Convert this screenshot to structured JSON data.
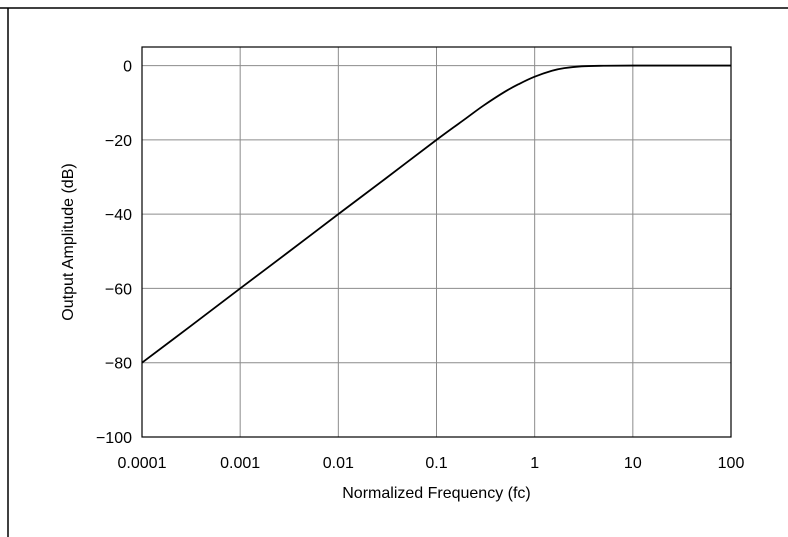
{
  "chart_data": {
    "type": "line",
    "title": "",
    "xlabel": "Normalized Frequency (fc)",
    "ylabel": "Output Amplitude (dB)",
    "x_scale": "log",
    "xlim": [
      0.0001,
      100
    ],
    "ylim": [
      -100,
      5
    ],
    "x_ticks": [
      0.0001,
      0.001,
      0.01,
      0.1,
      1,
      10,
      100
    ],
    "x_tick_labels": [
      "0.0001",
      "0.001",
      "0.01",
      "0.1",
      "1",
      "10",
      "100"
    ],
    "y_ticks": [
      0,
      -20,
      -40,
      -60,
      -80,
      -100
    ],
    "y_tick_labels": [
      "0",
      "−20",
      "−40",
      "−60",
      "−80",
      "−100"
    ],
    "grid": true,
    "legend": "none",
    "line_color": "#000000",
    "grid_color": "#8c8c8c",
    "series": [
      {
        "x": [
          0.0001,
          0.0003,
          0.001,
          0.003,
          0.01,
          0.03,
          0.1,
          0.2,
          0.3,
          0.5,
          0.7,
          1,
          1.5,
          2,
          3,
          5,
          10,
          30,
          100
        ],
        "y": [
          -80,
          -70.5,
          -60,
          -50.5,
          -40,
          -30.5,
          -20,
          -14.2,
          -10.8,
          -7.0,
          -4.9,
          -3.0,
          -1.4,
          -0.7,
          -0.2,
          -0.05,
          0,
          0,
          0
        ]
      }
    ]
  }
}
